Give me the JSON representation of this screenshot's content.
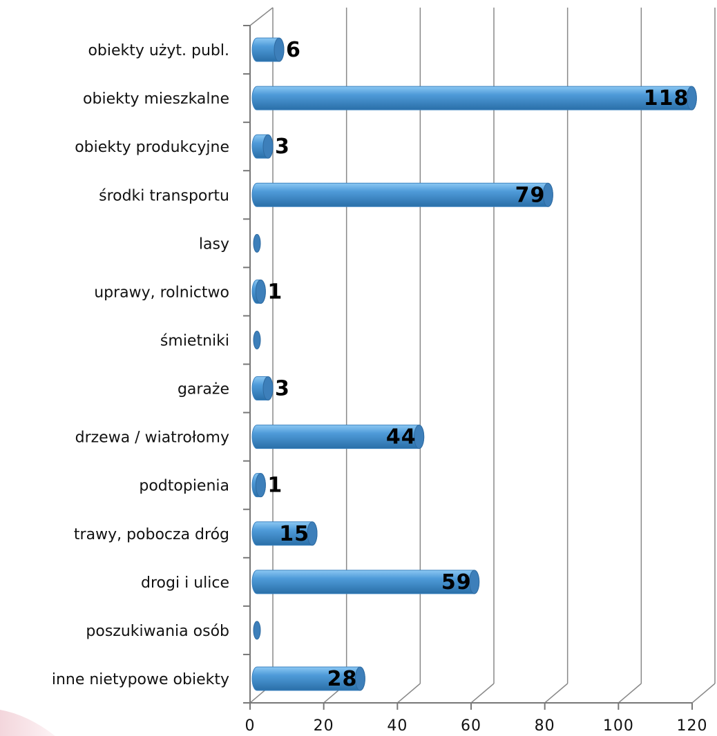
{
  "chart_data": {
    "type": "bar",
    "orientation": "horizontal",
    "style": "3d-cylinder",
    "categories": [
      "obiekty użyt. publ.",
      "obiekty mieszkalne",
      "obiekty produkcyjne",
      "środki transportu",
      "lasy",
      "uprawy, rolnictwo",
      "śmietniki",
      "garaże",
      "drzewa / wiatrołomy",
      "podtopienia",
      "trawy, pobocza dróg",
      "drogi i ulice",
      "poszukiwania osób",
      "inne nietypowe obiekty"
    ],
    "values": [
      6,
      118,
      3,
      79,
      0,
      1,
      0,
      3,
      44,
      1,
      15,
      59,
      0,
      28
    ],
    "data_labels": [
      "6",
      "118",
      "3",
      "79",
      "",
      "1",
      "",
      "3",
      "44",
      "1",
      "15",
      "59",
      "",
      "28"
    ],
    "xlim": [
      0,
      120
    ],
    "xticks": [
      "0",
      "20",
      "40",
      "60",
      "80",
      "100",
      "120"
    ],
    "title": "",
    "xlabel": "",
    "ylabel": "",
    "grid": "vertical",
    "legend": "none",
    "colors": {
      "bar": "#4f9bd9",
      "bar_light": "#8cc8f3",
      "bar_dark": "#2a6fa8",
      "cap": "#3d7fba",
      "grid": "#888888"
    }
  }
}
